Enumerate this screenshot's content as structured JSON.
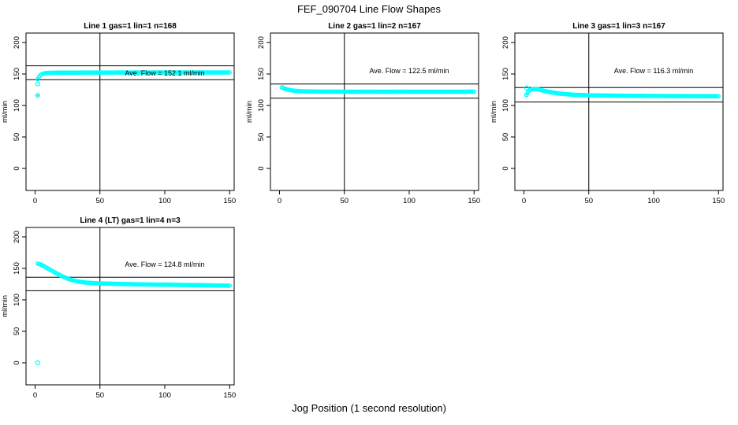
{
  "page": {
    "main_title": "FEF_090704  Line Flow Shapes",
    "xlabel": "Jog Position (1 second resolution)",
    "background_color": "#ffffff",
    "axis_color": "#000000",
    "point_color": "#00ffff"
  },
  "chart_data": [
    {
      "type": "scatter",
      "title": "Line 1 gas=1 lin=1 n=168",
      "n": 168,
      "ave_flow": 152.1,
      "annotation": "Ave. Flow =  152.1  ml/min",
      "annotation_at": {
        "x": 100,
        "y": 151
      },
      "ylabel": "ml/min",
      "xticks": [
        0,
        50,
        100,
        150
      ],
      "yticks": [
        0,
        50,
        100,
        150,
        200
      ],
      "xlim": [
        -7,
        153.5
      ],
      "ylim": [
        -35,
        215
      ],
      "vline_x": 50,
      "hlines": [
        163,
        141
      ],
      "x_start": 2,
      "x_end": 150,
      "shape": [
        [
          2,
          142
        ],
        [
          3,
          145.5
        ],
        [
          4,
          148
        ],
        [
          5,
          149.5
        ],
        [
          6,
          150.5
        ],
        [
          8,
          151.3
        ],
        [
          10,
          151.7
        ],
        [
          14,
          152
        ],
        [
          20,
          152.1
        ],
        [
          40,
          152.3
        ],
        [
          80,
          152.4
        ],
        [
          120,
          152.4
        ],
        [
          150,
          152.4
        ]
      ],
      "outliers": [
        {
          "x": 2,
          "y": 134,
          "marker": "circle"
        },
        {
          "x": 2,
          "y": 116,
          "marker": "circle-plus"
        }
      ]
    },
    {
      "type": "scatter",
      "title": "Line 2 gas=1 lin=2 n=167",
      "n": 167,
      "ave_flow": 122.5,
      "annotation": "Ave. Flow =  122.5  ml/min",
      "annotation_at": {
        "x": 100,
        "y": 155
      },
      "ylabel": "ml/min",
      "xticks": [
        0,
        50,
        100,
        150
      ],
      "yticks": [
        0,
        50,
        100,
        150,
        200
      ],
      "xlim": [
        -7,
        153.5
      ],
      "ylim": [
        -35,
        215
      ],
      "vline_x": 50,
      "hlines": [
        134,
        111.5
      ],
      "x_start": 2,
      "x_end": 150,
      "shape": [
        [
          2,
          128.5
        ],
        [
          3,
          127.5
        ],
        [
          5,
          126
        ],
        [
          8,
          124.5
        ],
        [
          12,
          123.3
        ],
        [
          18,
          122.5
        ],
        [
          30,
          122
        ],
        [
          60,
          121.8
        ],
        [
          100,
          121.8
        ],
        [
          150,
          121.9
        ]
      ],
      "outliers": [
        {
          "x": 2,
          "y": 128.5,
          "marker": "circle"
        }
      ]
    },
    {
      "type": "scatter",
      "title": "Line 3 gas=1 lin=3 n=167",
      "n": 167,
      "ave_flow": 116.3,
      "annotation": "Ave. Flow =  116.3  ml/min",
      "annotation_at": {
        "x": 100,
        "y": 155
      },
      "ylabel": "ml/min",
      "xticks": [
        0,
        50,
        100,
        150
      ],
      "yticks": [
        0,
        50,
        100,
        150,
        200
      ],
      "xlim": [
        -7,
        153.5
      ],
      "ylim": [
        -35,
        215
      ],
      "vline_x": 50,
      "hlines": [
        128.5,
        105.5
      ],
      "x_start": 3,
      "x_end": 150,
      "shape": [
        [
          3,
          121.5
        ],
        [
          4,
          123.5
        ],
        [
          6,
          125.5
        ],
        [
          8,
          126.3
        ],
        [
          11,
          125.5
        ],
        [
          15,
          123.5
        ],
        [
          20,
          121.3
        ],
        [
          28,
          118.8
        ],
        [
          38,
          117
        ],
        [
          55,
          116
        ],
        [
          80,
          115.3
        ],
        [
          110,
          115
        ],
        [
          150,
          114.7
        ]
      ],
      "outliers": [
        {
          "x": 2,
          "y": 128,
          "marker": "circle"
        },
        {
          "x": 2,
          "y": 117,
          "marker": "circle-plus"
        }
      ]
    },
    {
      "type": "scatter",
      "title": "Line 4 (LT) gas=1 lin=4 n=3",
      "n": 3,
      "ave_flow": 124.8,
      "annotation": "Ave. Flow =  124.8  ml/min",
      "annotation_at": {
        "x": 100,
        "y": 156
      },
      "ylabel": "ml/min",
      "xticks": [
        0,
        50,
        100,
        150
      ],
      "yticks": [
        0,
        50,
        100,
        150,
        200
      ],
      "xlim": [
        -7,
        153.5
      ],
      "ylim": [
        -35,
        215
      ],
      "vline_x": 50,
      "hlines": [
        136,
        114.5
      ],
      "x_start": 2,
      "x_end": 150,
      "shape": [
        [
          2,
          157.5
        ],
        [
          4,
          156.5
        ],
        [
          6,
          154.5
        ],
        [
          8,
          152
        ],
        [
          11,
          148.5
        ],
        [
          14,
          145
        ],
        [
          18,
          140.5
        ],
        [
          22,
          136.5
        ],
        [
          26,
          133
        ],
        [
          30,
          130.5
        ],
        [
          35,
          128.5
        ],
        [
          40,
          127.3
        ],
        [
          50,
          126.2
        ],
        [
          65,
          125.3
        ],
        [
          85,
          124.5
        ],
        [
          110,
          123.8
        ],
        [
          130,
          123.2
        ],
        [
          150,
          122.5
        ]
      ],
      "outliers": [
        {
          "x": 2,
          "y": 0,
          "marker": "circle"
        }
      ]
    }
  ]
}
